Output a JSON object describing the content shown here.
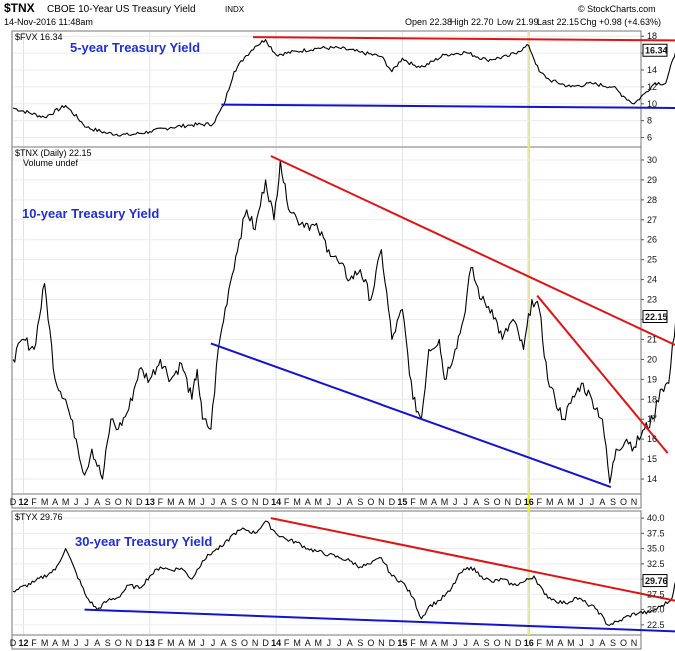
{
  "header": {
    "symbol": "$TNX",
    "name": "CBOE 10-Year US Treasury Yield",
    "exchange": "INDX",
    "date": "14-Nov-2016 11:48am",
    "open": "Open 22.38",
    "high": "High 22.70",
    "low": "Low 21.99",
    "last": "Last 22.15",
    "chg": "Chg +0.98 (+4.63%)",
    "credit": "© StockCharts.com"
  },
  "colors": {
    "price": "#000000",
    "resistance": "#e01414",
    "support": "#1414d0",
    "event_line": "#f2f200",
    "annotation": "#1f2fd6"
  },
  "x_axis": {
    "labels": [
      "D",
      "12",
      "F",
      "M",
      "A",
      "M",
      "J",
      "J",
      "A",
      "S",
      "O",
      "N",
      "D",
      "13",
      "F",
      "M",
      "A",
      "M",
      "J",
      "J",
      "A",
      "S",
      "O",
      "N",
      "D",
      "14",
      "F",
      "M",
      "A",
      "M",
      "J",
      "J",
      "A",
      "S",
      "O",
      "N",
      "D",
      "15",
      "F",
      "M",
      "A",
      "M",
      "J",
      "J",
      "A",
      "S",
      "O",
      "N",
      "D",
      "16",
      "F",
      "M",
      "A",
      "M",
      "J",
      "J",
      "A",
      "S",
      "O",
      "N"
    ],
    "bold": [
      "12",
      "13",
      "14",
      "15",
      "16"
    ]
  },
  "chart_data": [
    {
      "type": "line",
      "panel": "top",
      "legend": "$FVX 16.34",
      "annotation": "5-year Treasury Yield",
      "ylim": [
        5,
        18.5
      ],
      "yticks": [
        6,
        8,
        10,
        12,
        14,
        16,
        18
      ],
      "last_value": "16.34",
      "anchors": [
        [
          0,
          9.5
        ],
        [
          3,
          8.4
        ],
        [
          5,
          9.8
        ],
        [
          7,
          7.2
        ],
        [
          9,
          6.5
        ],
        [
          11,
          6.3
        ],
        [
          13,
          6.7
        ],
        [
          15,
          7.2
        ],
        [
          17,
          7.5
        ],
        [
          19,
          7.6
        ],
        [
          20,
          9.8
        ],
        [
          21,
          13.8
        ],
        [
          22,
          15.5
        ],
        [
          23,
          16.8
        ],
        [
          24,
          17.6
        ],
        [
          25,
          15.8
        ],
        [
          27,
          16.2
        ],
        [
          29,
          16.6
        ],
        [
          31,
          16.6
        ],
        [
          33,
          16.1
        ],
        [
          35,
          15.6
        ],
        [
          36,
          13.8
        ],
        [
          37,
          15.4
        ],
        [
          38,
          14.6
        ],
        [
          39,
          14.4
        ],
        [
          41,
          15.8
        ],
        [
          43,
          16.1
        ],
        [
          45,
          15.2
        ],
        [
          47,
          15.6
        ],
        [
          48,
          16.2
        ],
        [
          49,
          16.9
        ],
        [
          50,
          13.8
        ],
        [
          51,
          12.8
        ],
        [
          53,
          12.0
        ],
        [
          55,
          12.4
        ],
        [
          57,
          12.0
        ],
        [
          58,
          10.9
        ],
        [
          59,
          10.0
        ],
        [
          60,
          11.2
        ],
        [
          61,
          12.5
        ],
        [
          62,
          12.4
        ],
        [
          63,
          16.34
        ]
      ],
      "trend_lines": [
        {
          "kind": "resistance",
          "from": [
            22.8,
            17.9
          ],
          "to": [
            63.5,
            17.5
          ]
        },
        {
          "kind": "support",
          "from": [
            19.8,
            9.9
          ],
          "to": [
            63.5,
            9.5
          ]
        }
      ]
    },
    {
      "type": "line",
      "panel": "middle",
      "legend": "$TNX (Daily) 22.15",
      "legend2": "Volume undef",
      "annotation": "10-year Treasury Yield",
      "ylim": [
        13.3,
        30.6
      ],
      "yticks": [
        14,
        15,
        16,
        17,
        18,
        19,
        20,
        21,
        22,
        23,
        24,
        25,
        26,
        27,
        28,
        29,
        30
      ],
      "last_value": "22.15",
      "anchors": [
        [
          0,
          20.0
        ],
        [
          1,
          21.0
        ],
        [
          2,
          20.5
        ],
        [
          3,
          23.8
        ],
        [
          4,
          19.0
        ],
        [
          5,
          18.0
        ],
        [
          6,
          16.0
        ],
        [
          6.8,
          14.2
        ],
        [
          7.5,
          15.5
        ],
        [
          8.5,
          14.0
        ],
        [
          9.3,
          17.0
        ],
        [
          10,
          16.5
        ],
        [
          11,
          17.5
        ],
        [
          12,
          19.5
        ],
        [
          13,
          19.0
        ],
        [
          14,
          20.0
        ],
        [
          15,
          19.0
        ],
        [
          16,
          19.8
        ],
        [
          17,
          18.0
        ],
        [
          17.5,
          19.5
        ],
        [
          18,
          17.0
        ],
        [
          18.8,
          16.5
        ],
        [
          19.5,
          20.5
        ],
        [
          20.5,
          23.5
        ],
        [
          21.5,
          26.0
        ],
        [
          22.2,
          27.5
        ],
        [
          23,
          26.5
        ],
        [
          24,
          29.0
        ],
        [
          24.8,
          27.0
        ],
        [
          25.4,
          30.0
        ],
        [
          26,
          28.0
        ],
        [
          27,
          27.0
        ],
        [
          28,
          26.8
        ],
        [
          29,
          26.5
        ],
        [
          30,
          25.5
        ],
        [
          31,
          24.8
        ],
        [
          32,
          24.0
        ],
        [
          33,
          24.5
        ],
        [
          34,
          23.0
        ],
        [
          35,
          25.5
        ],
        [
          36,
          21.0
        ],
        [
          37,
          22.5
        ],
        [
          38,
          18.0
        ],
        [
          38.8,
          17.0
        ],
        [
          39.5,
          20.5
        ],
        [
          40.5,
          21.0
        ],
        [
          41,
          19.0
        ],
        [
          42,
          20.5
        ],
        [
          42.8,
          22.0
        ],
        [
          43.5,
          24.6
        ],
        [
          44.5,
          23.0
        ],
        [
          45.5,
          22.5
        ],
        [
          46.5,
          21.0
        ],
        [
          47.5,
          22.0
        ],
        [
          48.5,
          20.5
        ],
        [
          49.3,
          23.0
        ],
        [
          50,
          22.5
        ],
        [
          50.8,
          19.0
        ],
        [
          51.5,
          18.0
        ],
        [
          52.3,
          17.0
        ],
        [
          53,
          17.8
        ],
        [
          54,
          18.8
        ],
        [
          55,
          18.0
        ],
        [
          56,
          17.0
        ],
        [
          56.7,
          13.8
        ],
        [
          57.3,
          15.5
        ],
        [
          58.3,
          16.0
        ],
        [
          59,
          15.6
        ],
        [
          60,
          16.5
        ],
        [
          60.8,
          17.0
        ],
        [
          61.5,
          18.5
        ],
        [
          62.3,
          18.8
        ],
        [
          63,
          22.15
        ]
      ],
      "trend_lines": [
        {
          "kind": "resistance",
          "from": [
            24.5,
            30.2
          ],
          "to": [
            63.4,
            20.6
          ]
        },
        {
          "kind": "resistance",
          "from": [
            49.8,
            23.2
          ],
          "to": [
            62.2,
            15.3
          ]
        },
        {
          "kind": "support",
          "from": [
            18.8,
            20.8
          ],
          "to": [
            56.8,
            13.6
          ]
        }
      ]
    },
    {
      "type": "line",
      "panel": "bottom",
      "legend": "$TYX 29.76",
      "annotation": "30-year Treasury Yield",
      "ylim": [
        21.0,
        41.0
      ],
      "yticks": [
        22.5,
        25.0,
        27.5,
        30.0,
        32.5,
        35.0,
        37.5,
        40.0
      ],
      "ytick_labels": [
        "22.5",
        "25.0",
        "27.5",
        "30.0",
        "32.5",
        "35.0",
        "37.5",
        "40.0"
      ],
      "last_value": "29.76",
      "anchors": [
        [
          0,
          28.0
        ],
        [
          2,
          29.5
        ],
        [
          4,
          31.5
        ],
        [
          5,
          35.0
        ],
        [
          6,
          31.0
        ],
        [
          7,
          27.0
        ],
        [
          8,
          25.0
        ],
        [
          9,
          26.5
        ],
        [
          10,
          27.0
        ],
        [
          11,
          29.0
        ],
        [
          12,
          28.5
        ],
        [
          13,
          30.5
        ],
        [
          14,
          32.0
        ],
        [
          15,
          31.5
        ],
        [
          16,
          31.8
        ],
        [
          17,
          30.0
        ],
        [
          18,
          33.0
        ],
        [
          19,
          34.5
        ],
        [
          20,
          35.5
        ],
        [
          21,
          37.5
        ],
        [
          22,
          38.2
        ],
        [
          23,
          37.5
        ],
        [
          24,
          39.5
        ],
        [
          25,
          37.5
        ],
        [
          26,
          36.5
        ],
        [
          27,
          36.0
        ],
        [
          28,
          35.0
        ],
        [
          29,
          34.5
        ],
        [
          30,
          34.0
        ],
        [
          31,
          33.5
        ],
        [
          32,
          33.0
        ],
        [
          33,
          32.0
        ],
        [
          34,
          32.5
        ],
        [
          35,
          33.5
        ],
        [
          36,
          30.5
        ],
        [
          37,
          29.5
        ],
        [
          38,
          27.0
        ],
        [
          38.8,
          23.5
        ],
        [
          39.5,
          25.5
        ],
        [
          40.5,
          26.5
        ],
        [
          41.5,
          28.0
        ],
        [
          42.5,
          31.0
        ],
        [
          43.5,
          32.0
        ],
        [
          44.5,
          30.5
        ],
        [
          45.5,
          29.5
        ],
        [
          46.5,
          30.0
        ],
        [
          47.5,
          29.0
        ],
        [
          48.5,
          29.5
        ],
        [
          49.5,
          30.5
        ],
        [
          50.5,
          27.5
        ],
        [
          51.5,
          26.5
        ],
        [
          52.5,
          26.0
        ],
        [
          53.5,
          27.0
        ],
        [
          54.5,
          26.0
        ],
        [
          55.5,
          25.0
        ],
        [
          56.5,
          22.5
        ],
        [
          57.5,
          23.0
        ],
        [
          58.5,
          24.0
        ],
        [
          59.5,
          24.5
        ],
        [
          60.5,
          24.5
        ],
        [
          61.5,
          25.5
        ],
        [
          62.5,
          26.5
        ],
        [
          63,
          29.76
        ]
      ],
      "trend_lines": [
        {
          "kind": "resistance",
          "from": [
            24.5,
            40.0
          ],
          "to": [
            63.4,
            26.3
          ]
        },
        {
          "kind": "support",
          "from": [
            6.8,
            25.0
          ],
          "to": [
            63.4,
            21.4
          ]
        }
      ]
    }
  ]
}
